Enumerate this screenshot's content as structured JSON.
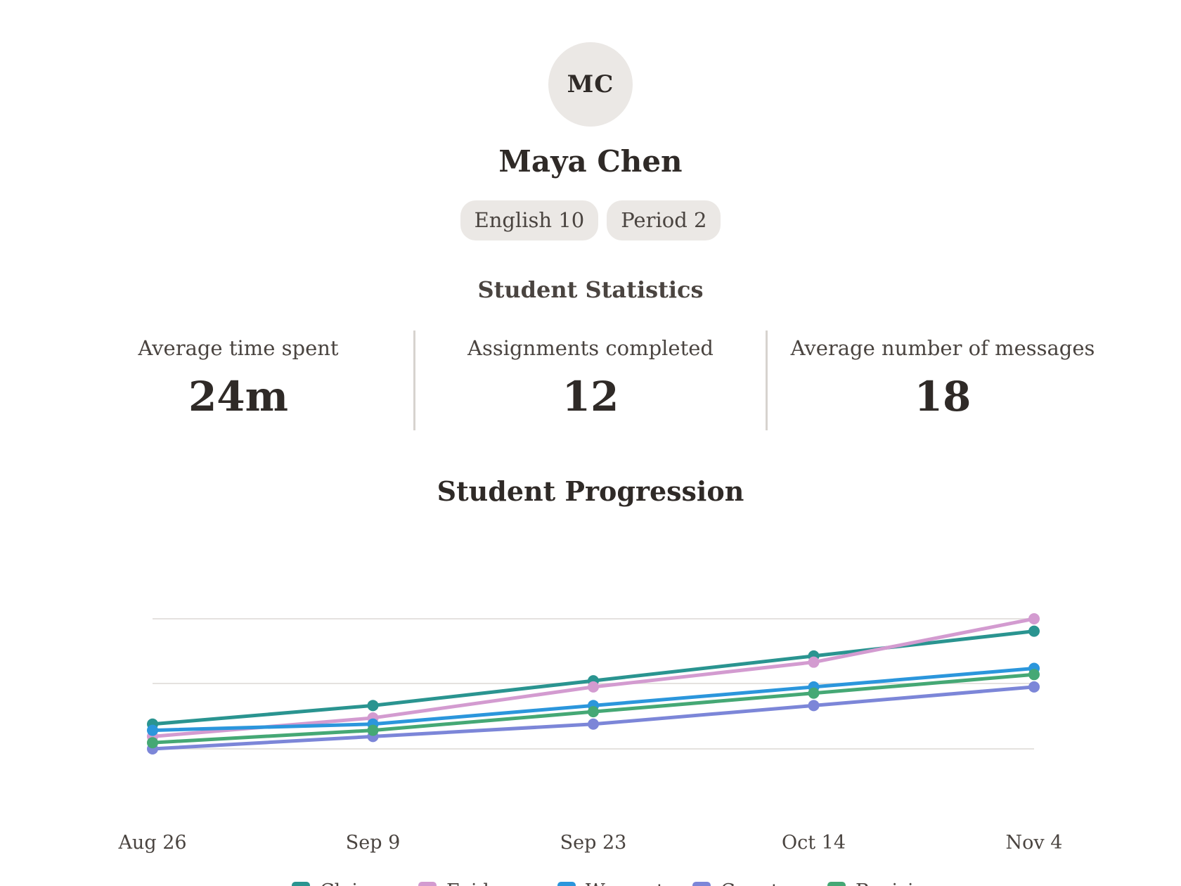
{
  "student": {
    "initials": "MC",
    "name": "Maya Chen",
    "tags": [
      "English 10",
      "Period 2"
    ]
  },
  "statistics": {
    "title": "Student Statistics",
    "items": [
      {
        "label": "Average time spent",
        "value": "24m"
      },
      {
        "label": "Assignments completed",
        "value": "12"
      },
      {
        "label": "Average number of messages",
        "value": "18"
      }
    ]
  },
  "progression": {
    "title": "Student Progression"
  },
  "chart_data": {
    "type": "line",
    "categories": [
      "Aug 26",
      "Sep 9",
      "Sep 23",
      "Oct 14",
      "Nov 4"
    ],
    "ylim": [
      0,
      5
    ],
    "grid": true,
    "gridlines": [
      2,
      3,
      4
    ],
    "legend": "bottom",
    "series": [
      {
        "name": "Claim",
        "color": "#2a9490",
        "values": [
          2.2,
          2.5,
          2.9,
          3.3,
          3.7
        ]
      },
      {
        "name": "Evidence",
        "color": "#d39bd0",
        "values": [
          2.0,
          2.3,
          2.8,
          3.2,
          3.9
        ]
      },
      {
        "name": "Warrant",
        "color": "#2b96dc",
        "values": [
          2.1,
          2.2,
          2.5,
          2.8,
          3.1
        ]
      },
      {
        "name": "Counter",
        "color": "#7c86d8",
        "values": [
          1.8,
          2.0,
          2.2,
          2.5,
          2.8
        ]
      },
      {
        "name": "Revision",
        "color": "#45a875",
        "values": [
          1.9,
          2.1,
          2.4,
          2.7,
          3.0
        ]
      }
    ]
  }
}
